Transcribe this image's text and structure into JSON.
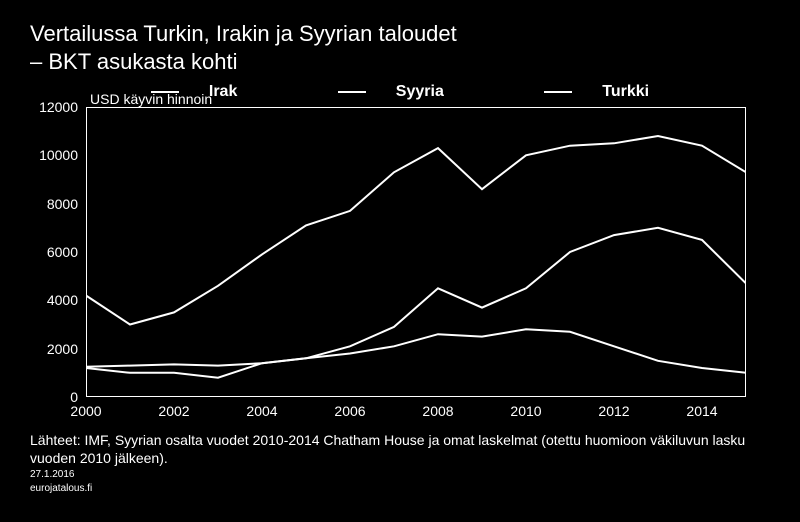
{
  "title_line1": "Vertailussa Turkin, Irakin ja Syyrian taloudet",
  "title_line2": "– BKT asukasta kohti",
  "legend": {
    "items": [
      "Irak",
      "Syyria",
      "Turkki"
    ]
  },
  "y_axis_title": "USD käyvin hinnoin",
  "chart": {
    "type": "line",
    "background_color": "#000000",
    "line_color": "#ffffff",
    "axis_color": "#ffffff",
    "text_color": "#ffffff",
    "line_width": 2,
    "xlim": [
      2000,
      2015
    ],
    "ylim": [
      0,
      12000
    ],
    "ytick_step": 2000,
    "yticks": [
      0,
      2000,
      4000,
      6000,
      8000,
      10000,
      12000
    ],
    "xticks": [
      2000,
      2002,
      2004,
      2006,
      2008,
      2010,
      2012,
      2014
    ],
    "series": {
      "Turkki": {
        "x": [
          2000,
          2001,
          2002,
          2003,
          2004,
          2005,
          2006,
          2007,
          2008,
          2009,
          2010,
          2011,
          2012,
          2013,
          2014,
          2015
        ],
        "y": [
          4200,
          3000,
          3500,
          4600,
          5900,
          7100,
          7700,
          9300,
          10300,
          8600,
          10000,
          10400,
          10500,
          10800,
          10400,
          9300
        ]
      },
      "Irak": {
        "x": [
          2000,
          2001,
          2002,
          2003,
          2004,
          2005,
          2006,
          2007,
          2008,
          2009,
          2010,
          2011,
          2012,
          2013,
          2014,
          2015
        ],
        "y": [
          1200,
          1000,
          1000,
          800,
          1400,
          1600,
          2100,
          2900,
          4500,
          3700,
          4500,
          6000,
          6700,
          7000,
          6500,
          4700
        ]
      },
      "Syyria": {
        "x": [
          2000,
          2001,
          2002,
          2003,
          2004,
          2005,
          2006,
          2007,
          2008,
          2009,
          2010,
          2011,
          2012,
          2013,
          2014,
          2015
        ],
        "y": [
          1250,
          1300,
          1350,
          1300,
          1400,
          1600,
          1800,
          2100,
          2600,
          2500,
          2800,
          2700,
          2100,
          1500,
          1200,
          1000
        ]
      }
    }
  },
  "footer": {
    "sources": "Lähteet: IMF, Syyrian osalta vuodet 2010-2014 Chatham House ja omat laskelmat (otettu huomioon väkiluvun lasku vuoden 2010 jälkeen).",
    "date": "27.1.2016",
    "site": "eurojatalous.fi"
  }
}
